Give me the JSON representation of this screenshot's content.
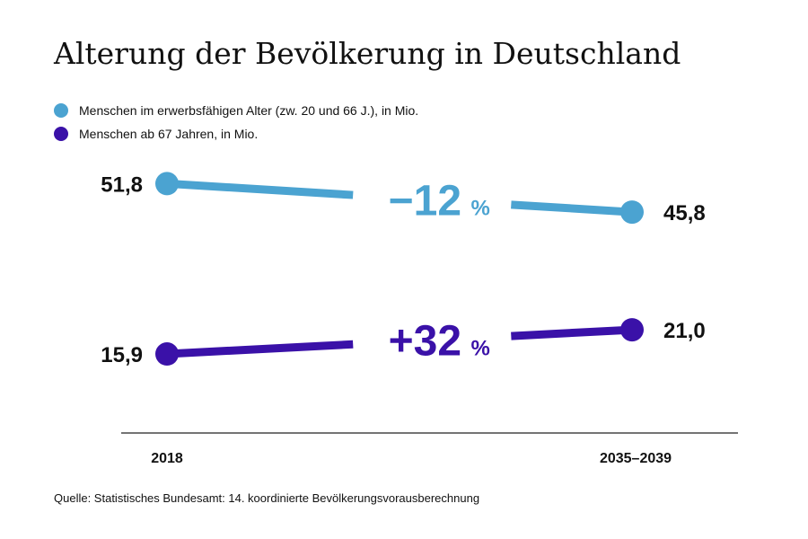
{
  "chart_data": {
    "type": "line",
    "title": "Alterung der Bevölkerung in Deutschland",
    "categories": [
      "2018",
      "2035–2039"
    ],
    "series": [
      {
        "name": "Menschen im erwerbsfähigen Alter (zw. 20 und 66 J.), in Mio.",
        "values": [
          51.8,
          45.8
        ],
        "value_labels": [
          "51,8",
          "45,8"
        ],
        "change": "−12",
        "change_unit": "%",
        "color": "#4ba3d1"
      },
      {
        "name": "Menschen ab 67 Jahren, in Mio.",
        "values": [
          15.9,
          21.0
        ],
        "value_labels": [
          "15,9",
          "21,0"
        ],
        "change": "+32",
        "change_unit": "%",
        "color": "#3a11a8"
      }
    ],
    "source": "Quelle: Statistisches Bundesamt: 14. koordinierte Bevölkerungsvorausberechnung"
  }
}
